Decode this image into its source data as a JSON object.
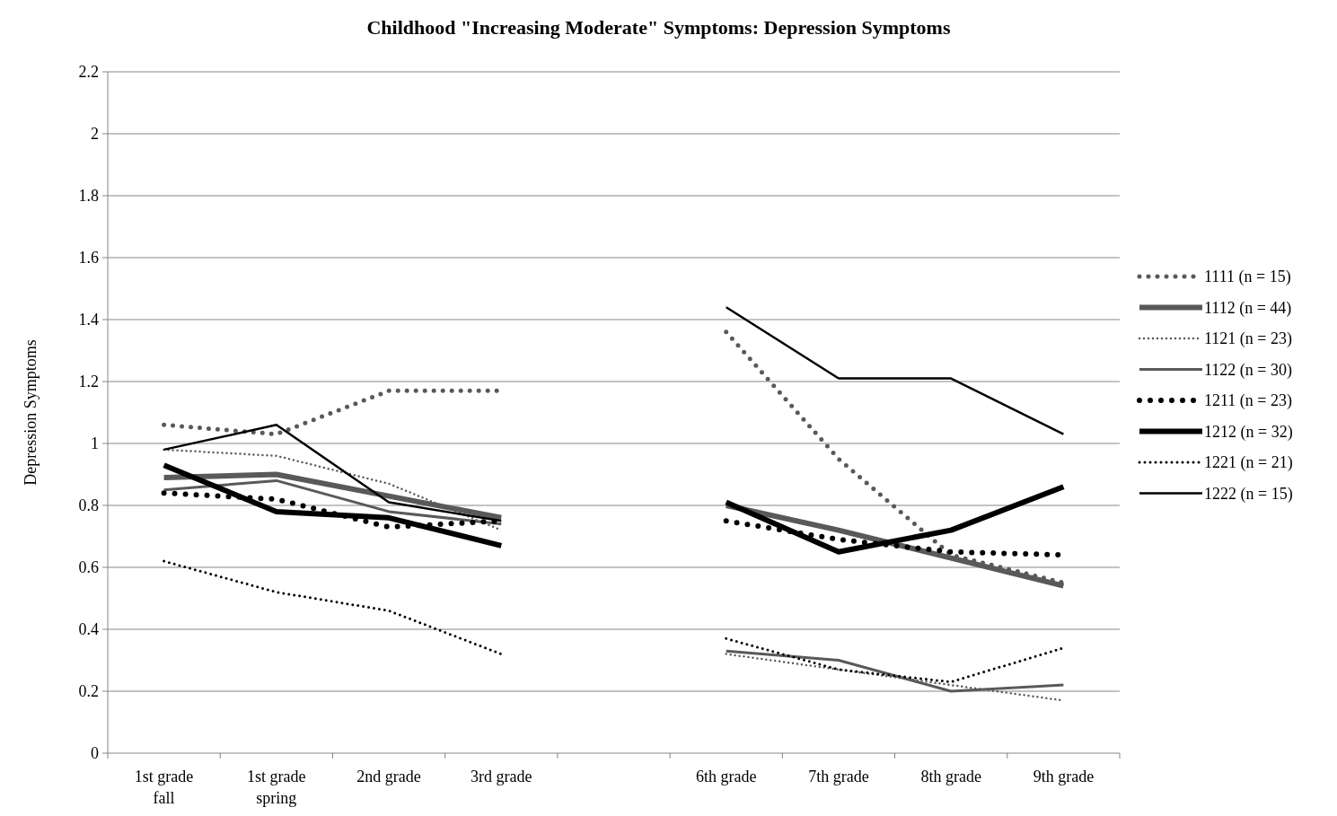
{
  "chart_data": {
    "type": "line",
    "title": "Childhood \"Increasing Moderate\" Symptoms: Depression Symptoms",
    "ylabel": "Depression Symptoms",
    "categories": [
      "1st grade fall",
      "1st grade spring",
      "2nd grade",
      "3rd grade",
      null,
      "6th grade",
      "7th grade",
      "8th grade",
      "9th grade"
    ],
    "ylim": [
      0,
      2.2
    ],
    "yticks": [
      0,
      0.2,
      0.4,
      0.6,
      0.8,
      1,
      1.2,
      1.4,
      1.6,
      1.8,
      2,
      2.2
    ],
    "grid": "y",
    "legend": "right",
    "series": [
      {
        "name": "1111 (n = 15)",
        "color": "#595959",
        "line_style": "dotted",
        "values": [
          1.06,
          1.03,
          1.17,
          1.17,
          null,
          1.36,
          0.95,
          0.64,
          0.55
        ]
      },
      {
        "name": "1112 (n = 44)",
        "color": "#595959",
        "line_style": "solid",
        "values": [
          0.89,
          0.9,
          0.83,
          0.76,
          null,
          0.8,
          0.72,
          0.63,
          0.54
        ]
      },
      {
        "name": "1121 (n = 23)",
        "color": "#595959",
        "line_style": "dotted",
        "values": [
          0.98,
          0.96,
          0.87,
          0.72,
          null,
          0.32,
          0.27,
          0.22,
          0.17
        ]
      },
      {
        "name": "1122 (n = 30)",
        "color": "#595959",
        "line_style": "solid",
        "values": [
          0.85,
          0.88,
          0.78,
          0.74,
          null,
          0.33,
          0.3,
          0.2,
          0.22
        ]
      },
      {
        "name": "1211 (n = 23)",
        "color": "#000000",
        "line_style": "dotted",
        "values": [
          0.84,
          0.82,
          0.73,
          0.75,
          null,
          0.75,
          0.69,
          0.65,
          0.64
        ]
      },
      {
        "name": "1212 (n = 32)",
        "color": "#000000",
        "line_style": "solid",
        "values": [
          0.93,
          0.78,
          0.76,
          0.67,
          null,
          0.81,
          0.65,
          0.72,
          0.86
        ]
      },
      {
        "name": "1221 (n = 21)",
        "color": "#000000",
        "line_style": "dotted",
        "values": [
          0.62,
          0.52,
          0.46,
          0.32,
          null,
          0.37,
          0.27,
          0.23,
          0.34
        ]
      },
      {
        "name": "1222 (n = 15)",
        "color": "#000000",
        "line_style": "solid",
        "values": [
          0.98,
          1.06,
          0.81,
          0.75,
          null,
          1.44,
          1.21,
          1.21,
          1.03
        ]
      }
    ]
  }
}
